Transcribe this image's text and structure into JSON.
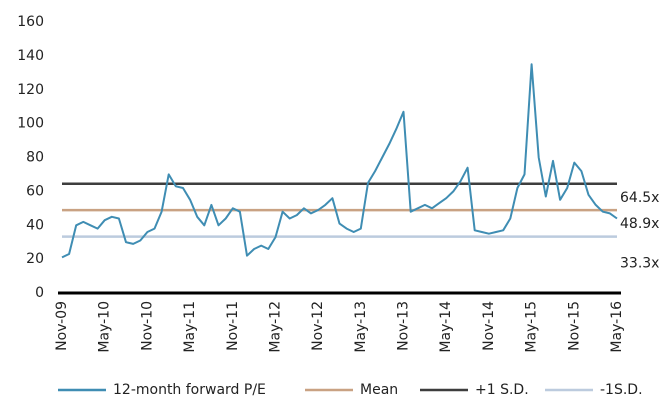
{
  "chart_data": {
    "type": "line",
    "categories": [
      "Nov-09",
      null,
      null,
      null,
      null,
      null,
      "May-10",
      null,
      null,
      null,
      null,
      null,
      "Nov-10",
      null,
      null,
      null,
      null,
      null,
      "May-11",
      null,
      null,
      null,
      null,
      null,
      "Nov-11",
      null,
      null,
      null,
      null,
      null,
      "May-12",
      null,
      null,
      null,
      null,
      null,
      "Nov-12",
      null,
      null,
      null,
      null,
      null,
      "May-13",
      null,
      null,
      null,
      null,
      null,
      "Nov-13",
      null,
      null,
      null,
      null,
      null,
      "May-14",
      null,
      null,
      null,
      null,
      null,
      "Nov-14",
      null,
      null,
      null,
      null,
      null,
      "May-15",
      null,
      null,
      null,
      null,
      null,
      "Nov-15",
      null,
      null,
      null,
      null,
      null,
      "May-16"
    ],
    "series": [
      {
        "name": "12-month forward P/E",
        "color": "#3f8db3",
        "values": [
          21,
          23,
          40,
          42,
          40,
          38,
          43,
          45,
          44,
          30,
          29,
          31,
          36,
          38,
          48,
          70,
          63,
          62,
          55,
          45,
          40,
          52,
          40,
          44,
          50,
          48,
          22,
          26,
          28,
          26,
          33,
          48,
          44,
          46,
          50,
          47,
          49,
          52,
          56,
          41,
          38,
          36,
          38,
          65,
          72,
          80,
          88,
          97,
          107,
          48,
          50,
          52,
          50,
          53,
          56,
          60,
          66,
          74,
          37,
          36,
          35,
          36,
          37,
          44,
          62,
          70,
          135,
          80,
          57,
          78,
          55,
          62,
          77,
          72,
          58,
          52,
          48,
          47,
          44
        ]
      }
    ],
    "reference_lines": [
      {
        "name": "Mean",
        "value": 48.9,
        "label": "48.9x",
        "color": "#c9a283"
      },
      {
        "name": "+1 S.D.",
        "value": 64.5,
        "label": "64.5x",
        "color": "#3d3d3d"
      },
      {
        "name": "-1S.D.",
        "value": 33.3,
        "label": "33.3x",
        "color": "#bccbde"
      }
    ],
    "ylim": [
      0,
      160
    ],
    "yticks": [
      0,
      20,
      40,
      60,
      80,
      100,
      120,
      140,
      160
    ]
  }
}
